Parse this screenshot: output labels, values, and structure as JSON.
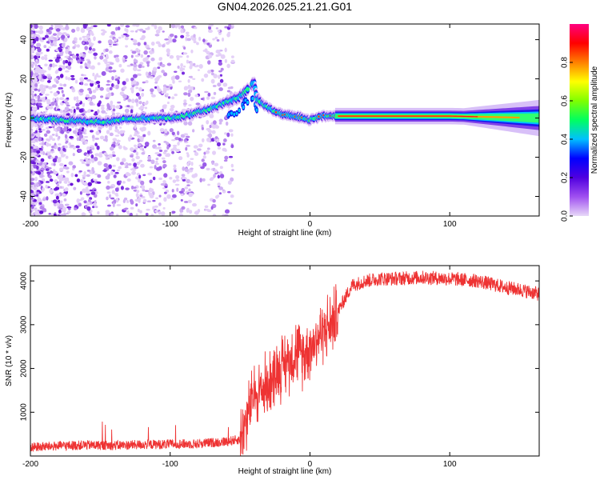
{
  "chart_data": [
    {
      "type": "heatmap",
      "title": "GN04.2026.025.21.21.G01",
      "xlabel": "Height of straight line (km)",
      "ylabel": "Frequency (Hz)",
      "xlim": [
        -200,
        164
      ],
      "ylim": [
        -50,
        48
      ],
      "xticks": [
        -200,
        -100,
        0,
        100
      ],
      "xtick_labels": [
        "-200",
        "-100",
        "0",
        "100"
      ],
      "yticks": [
        -40,
        -20,
        0,
        20,
        40
      ],
      "ytick_labels": [
        "-40",
        "-20",
        "0",
        "20",
        "40"
      ],
      "colorbar": {
        "label": "Normalized spectral amplitude",
        "range": [
          0,
          1
        ],
        "ticks": [
          0,
          0.2,
          0.4,
          0.6,
          0.8
        ],
        "tick_labels": [
          "0.0",
          "0.2",
          "0.4",
          "0.6",
          "0.8"
        ],
        "colormap": [
          "#e8d8f8",
          "#a050f0",
          "#5000e0",
          "#0000ff",
          "#00c0ff",
          "#00ff60",
          "#80ff00",
          "#ffff00",
          "#ff8000",
          "#ff0000",
          "#ff0080"
        ]
      },
      "ridge": {
        "description": "frequency of main spectral line vs height",
        "points": [
          [
            -200,
            0
          ],
          [
            -180,
            -1
          ],
          [
            -150,
            -2
          ],
          [
            -120,
            0
          ],
          [
            -100,
            0
          ],
          [
            -90,
            1
          ],
          [
            -80,
            3
          ],
          [
            -70,
            5
          ],
          [
            -60,
            8
          ],
          [
            -50,
            11
          ],
          [
            -45,
            14
          ],
          [
            -40,
            18
          ],
          [
            -38,
            10
          ],
          [
            -30,
            5
          ],
          [
            -20,
            2
          ],
          [
            -10,
            1
          ],
          [
            0,
            -1
          ],
          [
            10,
            1
          ],
          [
            20,
            1
          ],
          [
            50,
            1
          ],
          [
            100,
            1
          ],
          [
            164,
            0
          ]
        ]
      }
    },
    {
      "type": "line",
      "title": "",
      "xlabel": "Height of straight line (km)",
      "ylabel": "SNR (10 * v/v)",
      "xlim": [
        -200,
        164
      ],
      "ylim": [
        0,
        4350
      ],
      "xticks": [
        -200,
        -100,
        0,
        100
      ],
      "xtick_labels": [
        "-200",
        "-100",
        "0",
        "100"
      ],
      "yticks": [
        1000,
        2000,
        3000,
        4000
      ],
      "ytick_labels": [
        "1000",
        "2000",
        "3000",
        "4000"
      ],
      "series": [
        {
          "name": "SNR",
          "color": "#ee3333",
          "x": [
            -200,
            -180,
            -160,
            -140,
            -120,
            -100,
            -80,
            -60,
            -50,
            -45,
            -40,
            -35,
            -30,
            -25,
            -20,
            -15,
            -10,
            -5,
            0,
            5,
            10,
            15,
            20,
            25,
            30,
            40,
            50,
            60,
            80,
            100,
            120,
            140,
            150,
            164
          ],
          "y": [
            200,
            230,
            250,
            240,
            260,
            270,
            280,
            330,
            380,
            900,
            1400,
            1500,
            1650,
            1900,
            2050,
            2200,
            2400,
            2300,
            2500,
            2700,
            2900,
            3000,
            3300,
            3600,
            3900,
            4000,
            4050,
            4050,
            4080,
            4050,
            4000,
            3850,
            3800,
            3700
          ]
        }
      ]
    }
  ]
}
